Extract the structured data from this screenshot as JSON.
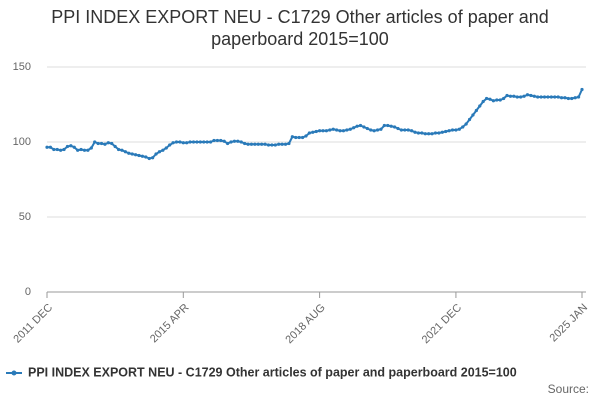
{
  "chart_data": {
    "type": "line",
    "title": "PPI INDEX EXPORT NEU - C1729 Other articles of paper and paperboard 2015=100",
    "categories": [
      "2011 DEC",
      null,
      null,
      null,
      null,
      null,
      null,
      null,
      null,
      null,
      null,
      null,
      null,
      null,
      null,
      null,
      null,
      null,
      null,
      null,
      null,
      null,
      null,
      null,
      null,
      null,
      null,
      null,
      null,
      null,
      null,
      null,
      null,
      null,
      null,
      null,
      null,
      null,
      null,
      null,
      "2015 APR",
      null,
      null,
      null,
      null,
      null,
      null,
      null,
      null,
      null,
      null,
      null,
      null,
      null,
      null,
      null,
      null,
      null,
      null,
      null,
      null,
      null,
      null,
      null,
      null,
      null,
      null,
      null,
      null,
      null,
      null,
      null,
      null,
      null,
      null,
      null,
      null,
      null,
      null,
      null,
      "2018 AUG",
      null,
      null,
      null,
      null,
      null,
      null,
      null,
      null,
      null,
      null,
      null,
      null,
      null,
      null,
      null,
      null,
      null,
      null,
      null,
      null,
      null,
      null,
      null,
      null,
      null,
      null,
      null,
      null,
      null,
      null,
      null,
      null,
      null,
      null,
      null,
      null,
      null,
      null,
      null,
      "2021 DEC",
      null,
      null,
      null,
      null,
      null,
      null,
      null,
      null,
      null,
      null,
      null,
      null,
      null,
      null,
      null,
      null,
      null,
      null,
      null,
      null,
      null,
      null,
      null,
      null,
      null,
      null,
      null,
      null,
      null,
      null,
      null,
      null,
      null,
      null,
      null,
      null,
      "2025 JAN"
    ],
    "series": [
      {
        "name": "PPI INDEX EXPORT NEU - C1729 Other articles of paper and paperboard 2015=100",
        "color": "#2a7ab9",
        "values": [
          96.5,
          96.5,
          95,
          95,
          94.5,
          95,
          97,
          97.5,
          96.5,
          94.5,
          95,
          94.5,
          94.5,
          96,
          100,
          99,
          99,
          98.5,
          99.5,
          99,
          97,
          95,
          94.5,
          93.5,
          92.5,
          92,
          91.5,
          91,
          90.5,
          90,
          89,
          89.5,
          92,
          93.5,
          94.5,
          96,
          98,
          99.5,
          100,
          100,
          99.5,
          99.5,
          100,
          100,
          100,
          100,
          100,
          100,
          100,
          101,
          101,
          101,
          100.5,
          99,
          100,
          100.5,
          100.5,
          100,
          99,
          98.5,
          98.5,
          98.5,
          98.5,
          98.5,
          98.5,
          98,
          98,
          98,
          98.5,
          98.5,
          98.5,
          99,
          103.5,
          103,
          103,
          103,
          104,
          106,
          106.5,
          107,
          107.5,
          107.5,
          107.5,
          108,
          108.5,
          108,
          107.5,
          107.5,
          108,
          108.5,
          109.5,
          110.5,
          111,
          110,
          109,
          108,
          107.5,
          108,
          108.5,
          111,
          111,
          110.5,
          110,
          109,
          108,
          108,
          108,
          107.5,
          106.5,
          106,
          106,
          105.5,
          105.5,
          105.5,
          106,
          106,
          106.5,
          107,
          107.5,
          108,
          108,
          108.5,
          110,
          112,
          115,
          118,
          121,
          124,
          127,
          129,
          128.5,
          127.5,
          128,
          128,
          129,
          131,
          130.5,
          130.5,
          130,
          130,
          130.5,
          131.5,
          131,
          130.5,
          130,
          130,
          130,
          130,
          130,
          130,
          130,
          129.5,
          129.5,
          129,
          129,
          129.5,
          130,
          135
        ]
      }
    ],
    "ylim": [
      0,
      150
    ],
    "yticks": [
      0,
      50,
      100,
      150
    ],
    "grid": true,
    "legend": "bottom",
    "source_label": "Source:"
  }
}
